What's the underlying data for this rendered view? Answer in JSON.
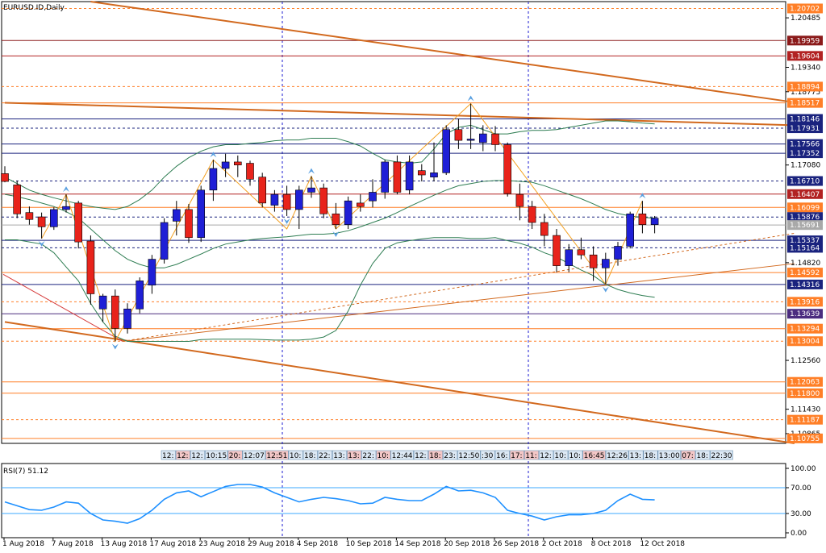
{
  "window": {
    "symbol_title": "EURUSD.ID,Daily",
    "rsi_title": "RSI(7) 51.12"
  },
  "colors": {
    "bull": "#1f1fd6",
    "bear": "#e8231b",
    "bb": "#2e7d52",
    "rsi": "#1e90ff",
    "trend": "#d2691e",
    "zigzag": "#f4a020",
    "axis": "#000000",
    "vgrid": "#1b1bd0"
  },
  "chart_data": {
    "type": "candlestick",
    "symbol": "EURUSD.ID",
    "timeframe": "Daily",
    "ylim": [
      1.1064,
      1.2086
    ],
    "x_range": [
      0,
      65
    ],
    "price_ticks": [
      "1.20702",
      "1.20485",
      "1.19959",
      "1.19604",
      "1.19340",
      "1.18894",
      "1.18775",
      "1.18517",
      "1.18146",
      "1.17931",
      "1.17566",
      "1.17352",
      "1.17080",
      "1.16710",
      "1.16407",
      "1.16099",
      "1.15876",
      "1.15691",
      "1.15337",
      "1.15164",
      "1.14820",
      "1.14592",
      "1.14316",
      "1.13916",
      "1.13639",
      "1.13294",
      "1.13004",
      "1.12560",
      "1.12063",
      "1.11800",
      "1.11430",
      "1.11187",
      "1.10865",
      "1.10755"
    ],
    "price_tick_boxes": [
      "1.20702",
      "1.19959",
      "1.19604",
      "1.18894",
      "1.18517",
      "1.18146",
      "1.17931",
      "1.17566",
      "1.17352",
      "1.16710",
      "1.16407",
      "1.16099",
      "1.15876",
      "1.15691",
      "1.15337",
      "1.15164",
      "1.14592",
      "1.14316",
      "1.13916",
      "1.13639",
      "1.13294",
      "1.13004",
      "1.12063",
      "1.11800",
      "1.11187",
      "1.10755"
    ],
    "price_tick_box_colors": [
      "#ff7f27",
      "#8b1a1a",
      "#b22222",
      "#ff7f27",
      "#ff7f27",
      "#1a237e",
      "#1a237e",
      "#1a237e",
      "#1a237e",
      "#1a237e",
      "#b22222",
      "#ff7f27",
      "#1a237e",
      "#a9a9a9",
      "#1a237e",
      "#1a237e",
      "#ff7f27",
      "#1a237e",
      "#ff7f27",
      "#4b2c7f",
      "#ff7f27",
      "#ff7f27",
      "#ff7f27",
      "#ff7f27",
      "#ff7f27",
      "#ff7f27"
    ],
    "date_labels": [
      "1 Aug 2018",
      "7 Aug 2018",
      "13 Aug 2018",
      "17 Aug 2018",
      "23 Aug 2018",
      "29 Aug 2018",
      "4 Sep 2018",
      "10 Sep 2018",
      "14 Sep 2018",
      "20 Sep 2018",
      "26 Sep 2018",
      "2 Oct 2018",
      "8 Oct 2018",
      "12 Oct 2018"
    ],
    "date_label_index": [
      0,
      4,
      8,
      12,
      16,
      20,
      24,
      28,
      32,
      36,
      40,
      44,
      48,
      52
    ],
    "candles": [
      {
        "o": 1.1688,
        "h": 1.1705,
        "l": 1.1668,
        "c": 1.167
      },
      {
        "o": 1.1662,
        "h": 1.1672,
        "l": 1.1585,
        "c": 1.1595
      },
      {
        "o": 1.1598,
        "h": 1.1612,
        "l": 1.157,
        "c": 1.1582
      },
      {
        "o": 1.1588,
        "h": 1.1598,
        "l": 1.1538,
        "c": 1.1565
      },
      {
        "o": 1.1565,
        "h": 1.161,
        "l": 1.1558,
        "c": 1.1605
      },
      {
        "o": 1.1605,
        "h": 1.164,
        "l": 1.1598,
        "c": 1.1612
      },
      {
        "o": 1.162,
        "h": 1.1625,
        "l": 1.1515,
        "c": 1.153
      },
      {
        "o": 1.1532,
        "h": 1.1545,
        "l": 1.1385,
        "c": 1.141
      },
      {
        "o": 1.1375,
        "h": 1.141,
        "l": 1.1345,
        "c": 1.1405
      },
      {
        "o": 1.1405,
        "h": 1.142,
        "l": 1.13,
        "c": 1.133
      },
      {
        "o": 1.133,
        "h": 1.1388,
        "l": 1.1318,
        "c": 1.1375
      },
      {
        "o": 1.1375,
        "h": 1.1448,
        "l": 1.1365,
        "c": 1.144
      },
      {
        "o": 1.143,
        "h": 1.15,
        "l": 1.141,
        "c": 1.149
      },
      {
        "o": 1.149,
        "h": 1.1585,
        "l": 1.148,
        "c": 1.1575
      },
      {
        "o": 1.1578,
        "h": 1.1625,
        "l": 1.1545,
        "c": 1.1605
      },
      {
        "o": 1.1605,
        "h": 1.1618,
        "l": 1.1528,
        "c": 1.154
      },
      {
        "o": 1.154,
        "h": 1.166,
        "l": 1.153,
        "c": 1.165
      },
      {
        "o": 1.165,
        "h": 1.172,
        "l": 1.1625,
        "c": 1.17
      },
      {
        "o": 1.17,
        "h": 1.1734,
        "l": 1.168,
        "c": 1.1715
      },
      {
        "o": 1.1715,
        "h": 1.173,
        "l": 1.168,
        "c": 1.1708
      },
      {
        "o": 1.1712,
        "h": 1.1718,
        "l": 1.166,
        "c": 1.1675
      },
      {
        "o": 1.168,
        "h": 1.169,
        "l": 1.161,
        "c": 1.162
      },
      {
        "o": 1.1615,
        "h": 1.165,
        "l": 1.16,
        "c": 1.164
      },
      {
        "o": 1.164,
        "h": 1.166,
        "l": 1.159,
        "c": 1.1605
      },
      {
        "o": 1.1605,
        "h": 1.166,
        "l": 1.156,
        "c": 1.165
      },
      {
        "o": 1.1645,
        "h": 1.1682,
        "l": 1.1632,
        "c": 1.1655
      },
      {
        "o": 1.1655,
        "h": 1.1665,
        "l": 1.1585,
        "c": 1.1595
      },
      {
        "o": 1.1595,
        "h": 1.162,
        "l": 1.156,
        "c": 1.157
      },
      {
        "o": 1.157,
        "h": 1.1635,
        "l": 1.156,
        "c": 1.1625
      },
      {
        "o": 1.162,
        "h": 1.164,
        "l": 1.16,
        "c": 1.1612
      },
      {
        "o": 1.1625,
        "h": 1.1675,
        "l": 1.161,
        "c": 1.1645
      },
      {
        "o": 1.1645,
        "h": 1.172,
        "l": 1.163,
        "c": 1.1715
      },
      {
        "o": 1.1715,
        "h": 1.173,
        "l": 1.164,
        "c": 1.1645
      },
      {
        "o": 1.165,
        "h": 1.173,
        "l": 1.164,
        "c": 1.1715
      },
      {
        "o": 1.1695,
        "h": 1.171,
        "l": 1.167,
        "c": 1.1685
      },
      {
        "o": 1.168,
        "h": 1.176,
        "l": 1.167,
        "c": 1.169
      },
      {
        "o": 1.169,
        "h": 1.18,
        "l": 1.1685,
        "c": 1.179
      },
      {
        "o": 1.179,
        "h": 1.1815,
        "l": 1.1745,
        "c": 1.1765
      },
      {
        "o": 1.1765,
        "h": 1.185,
        "l": 1.1745,
        "c": 1.1768
      },
      {
        "o": 1.176,
        "h": 1.18,
        "l": 1.174,
        "c": 1.178
      },
      {
        "o": 1.178,
        "h": 1.1798,
        "l": 1.174,
        "c": 1.1755
      },
      {
        "o": 1.1755,
        "h": 1.176,
        "l": 1.1635,
        "c": 1.1642
      },
      {
        "o": 1.164,
        "h": 1.1665,
        "l": 1.158,
        "c": 1.1612
      },
      {
        "o": 1.1612,
        "h": 1.1625,
        "l": 1.156,
        "c": 1.1575
      },
      {
        "o": 1.1575,
        "h": 1.1595,
        "l": 1.152,
        "c": 1.1545
      },
      {
        "o": 1.1545,
        "h": 1.156,
        "l": 1.146,
        "c": 1.1475
      },
      {
        "o": 1.1475,
        "h": 1.1525,
        "l": 1.146,
        "c": 1.1512
      },
      {
        "o": 1.1512,
        "h": 1.154,
        "l": 1.149,
        "c": 1.15
      },
      {
        "o": 1.15,
        "h": 1.152,
        "l": 1.144,
        "c": 1.147
      },
      {
        "o": 1.147,
        "h": 1.1505,
        "l": 1.1432,
        "c": 1.149
      },
      {
        "o": 1.149,
        "h": 1.153,
        "l": 1.1475,
        "c": 1.152
      },
      {
        "o": 1.152,
        "h": 1.16,
        "l": 1.1515,
        "c": 1.1595
      },
      {
        "o": 1.1595,
        "h": 1.1625,
        "l": 1.155,
        "c": 1.157
      },
      {
        "o": 1.157,
        "h": 1.159,
        "l": 1.155,
        "c": 1.1585
      }
    ],
    "bb_upper": [
      1.168,
      1.1665,
      1.165,
      1.164,
      1.1632,
      1.1625,
      1.1618,
      1.1612,
      1.1608,
      1.1605,
      1.1612,
      1.1628,
      1.165,
      1.168,
      1.1705,
      1.1725,
      1.174,
      1.175,
      1.1755,
      1.1755,
      1.1758,
      1.176,
      1.1764,
      1.1766,
      1.1766,
      1.177,
      1.177,
      1.177,
      1.1762,
      1.1752,
      1.1735,
      1.172,
      1.1715,
      1.1712,
      1.1715,
      1.1745,
      1.178,
      1.1795,
      1.18,
      1.179,
      1.178,
      1.178,
      1.1785,
      1.1788,
      1.1788,
      1.179,
      1.1795,
      1.18,
      1.1805,
      1.181,
      1.181,
      1.1808,
      1.1805,
      1.1803
    ],
    "bb_mid": [
      1.164,
      1.1635,
      1.1628,
      1.162,
      1.1612,
      1.16,
      1.1585,
      1.156,
      1.1535,
      1.151,
      1.149,
      1.1478,
      1.147,
      1.147,
      1.1478,
      1.149,
      1.1502,
      1.1515,
      1.1525,
      1.153,
      1.1535,
      1.1538,
      1.154,
      1.1542,
      1.1545,
      1.1548,
      1.1548,
      1.155,
      1.1556,
      1.1565,
      1.1575,
      1.1585,
      1.1598,
      1.1612,
      1.1625,
      1.1638,
      1.165,
      1.166,
      1.1665,
      1.167,
      1.1672,
      1.1672,
      1.167,
      1.1668,
      1.166,
      1.165,
      1.164,
      1.163,
      1.1618,
      1.1605,
      1.1596,
      1.159,
      1.1587,
      1.1585
    ],
    "bb_lower": [
      1.1535,
      1.1535,
      1.153,
      1.1525,
      1.1505,
      1.1472,
      1.144,
      1.1388,
      1.1345,
      1.1312,
      1.13,
      1.13,
      1.13,
      1.13,
      1.13,
      1.13,
      1.1304,
      1.1305,
      1.1305,
      1.1305,
      1.1305,
      1.1304,
      1.1303,
      1.1303,
      1.1303,
      1.1305,
      1.131,
      1.1325,
      1.137,
      1.143,
      1.148,
      1.1515,
      1.1528,
      1.1533,
      1.1537,
      1.154,
      1.154,
      1.154,
      1.1538,
      1.1538,
      1.154,
      1.1533,
      1.1527,
      1.1518,
      1.1505,
      1.1495,
      1.148,
      1.1465,
      1.1452,
      1.1432,
      1.142,
      1.1412,
      1.1406,
      1.1402
    ],
    "zigzag": [
      [
        3,
        1.1538
      ],
      [
        5,
        1.164
      ],
      [
        9,
        1.13
      ],
      [
        17,
        1.172
      ],
      [
        23,
        1.156
      ],
      [
        25,
        1.1682
      ],
      [
        27,
        1.156
      ],
      [
        38,
        1.185
      ],
      [
        49,
        1.1432
      ],
      [
        52,
        1.1625
      ]
    ],
    "rsi": {
      "title": "RSI(7) 51.12",
      "period": 7,
      "current": 51.12,
      "levels": [
        70,
        30
      ],
      "ticks": [
        "100.00",
        "70.00",
        "30.00",
        "0.00"
      ],
      "values": [
        48,
        42,
        36,
        35,
        40,
        48,
        46,
        30,
        20,
        18,
        15,
        22,
        35,
        52,
        62,
        65,
        56,
        64,
        72,
        75,
        75,
        71,
        62,
        55,
        48,
        52,
        55,
        53,
        50,
        45,
        46,
        55,
        52,
        50,
        50,
        60,
        72,
        65,
        66,
        62,
        55,
        35,
        30,
        26,
        20,
        25,
        28,
        28,
        30,
        35,
        50,
        60,
        52,
        51.12
      ]
    },
    "marker_times": [
      "12:",
      "12:",
      "12:",
      "10:15",
      "20:",
      "12:07",
      "12:51",
      "10:",
      "18:",
      "22:",
      "13:",
      "13:",
      "22:",
      "10:",
      "12:44",
      "12:",
      "18:",
      "23:",
      "12:50",
      ":30",
      "16:",
      "17:",
      "11:",
      "12:",
      "10:",
      "10:",
      "16:45",
      "12:26",
      "13:",
      "18:",
      "13:00",
      "07:",
      "18:",
      "22:30"
    ]
  }
}
